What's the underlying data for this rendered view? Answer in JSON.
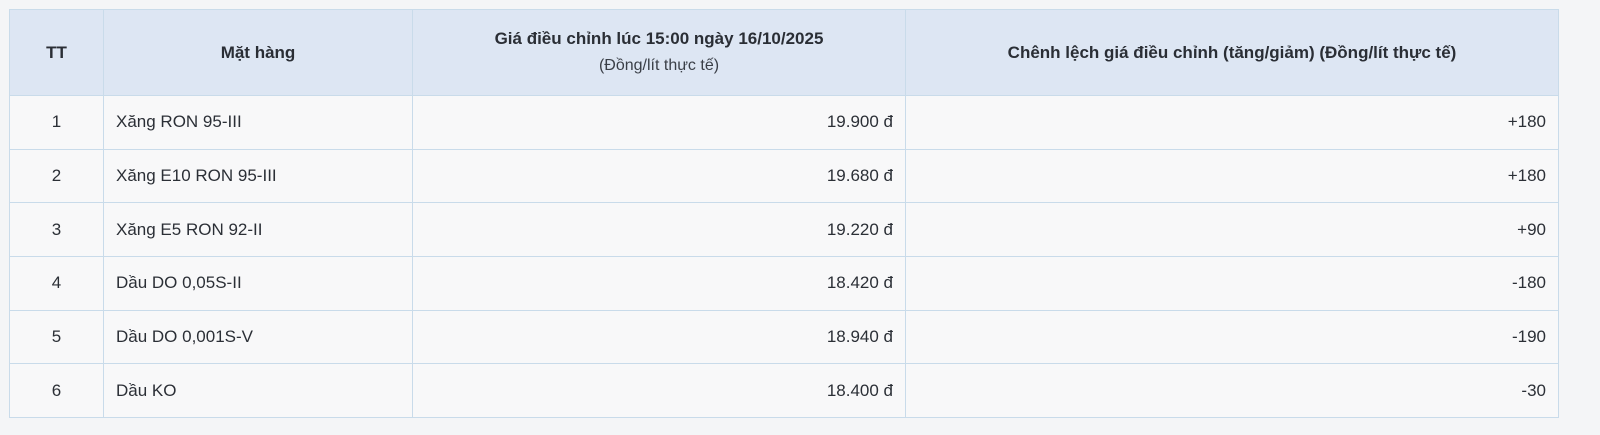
{
  "headers": {
    "tt": "TT",
    "item": "Mặt hàng",
    "price": "Giá điều chỉnh lúc 15:00 ngày 16/10/2025",
    "price_unit": "(Đồng/lít thực tế)",
    "diff": "Chênh lệch giá điều chỉnh (tăng/giảm) (Đồng/lít thực tế)"
  },
  "rows": [
    {
      "tt": "1",
      "item": "Xăng RON 95-III",
      "price": "19.900 đ",
      "diff": "+180"
    },
    {
      "tt": "2",
      "item": "Xăng E10 RON 95-III",
      "price": "19.680 đ",
      "diff": "+180"
    },
    {
      "tt": "3",
      "item": "Xăng E5 RON 92-II",
      "price": "19.220 đ",
      "diff": "+90"
    },
    {
      "tt": "4",
      "item": "Dầu DO 0,05S-II",
      "price": "18.420 đ",
      "diff": "-180"
    },
    {
      "tt": "5",
      "item": "Dầu DO 0,001S-V",
      "price": "18.940 đ",
      "diff": "-190"
    },
    {
      "tt": "6",
      "item": "Dầu KO",
      "price": "18.400 đ",
      "diff": "-30"
    }
  ]
}
